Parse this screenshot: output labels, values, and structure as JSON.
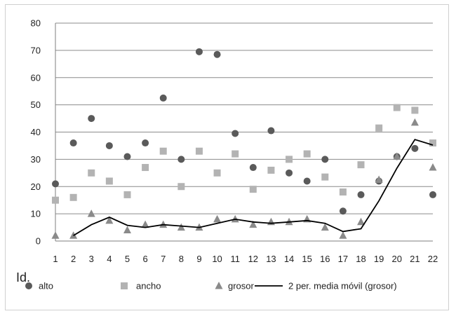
{
  "chart_data": {
    "type": "scatter",
    "title": "",
    "xlabel": "Id.",
    "ylabel": "",
    "ylim": [
      0,
      80
    ],
    "yticks": [
      0,
      10,
      20,
      30,
      40,
      50,
      60,
      70,
      80
    ],
    "grid": true,
    "legend_position": "bottom",
    "categories": [
      1,
      2,
      3,
      4,
      5,
      6,
      7,
      8,
      9,
      10,
      11,
      12,
      13,
      14,
      15,
      16,
      17,
      18,
      19,
      20,
      21,
      22
    ],
    "series": [
      {
        "name": "alto",
        "type": "scatter",
        "marker": "circle",
        "color": "#5a5a5a",
        "values": [
          21,
          36,
          45,
          35,
          31,
          36,
          52.5,
          30,
          69.5,
          68.5,
          39.5,
          27,
          40.5,
          25,
          22,
          30,
          11,
          17,
          22,
          31,
          34,
          17
        ]
      },
      {
        "name": "ancho",
        "type": "scatter",
        "marker": "square",
        "color": "#b3b3b3",
        "values": [
          15,
          16,
          25,
          22,
          17,
          27,
          33,
          20,
          33,
          25,
          32,
          19,
          26,
          30,
          32,
          23.5,
          18,
          28,
          41.5,
          49,
          48,
          36
        ]
      },
      {
        "name": "grosor",
        "type": "scatter",
        "marker": "triangle",
        "color": "#8a8a8a",
        "values": [
          2,
          2,
          10,
          7.5,
          4,
          6,
          6,
          5,
          5,
          8,
          8,
          6,
          7,
          7,
          8,
          5,
          2,
          7,
          22.5,
          31,
          43.5,
          27
        ]
      },
      {
        "name": "2 per. media móvil (grosor)",
        "type": "line",
        "color": "#000000",
        "values": [
          null,
          2,
          6,
          8.75,
          5.75,
          5,
          6,
          5.5,
          5,
          6.5,
          8,
          7,
          6.5,
          7,
          7.5,
          6.5,
          3.5,
          4.5,
          14.75,
          26.75,
          37.25,
          35.25
        ]
      }
    ]
  }
}
